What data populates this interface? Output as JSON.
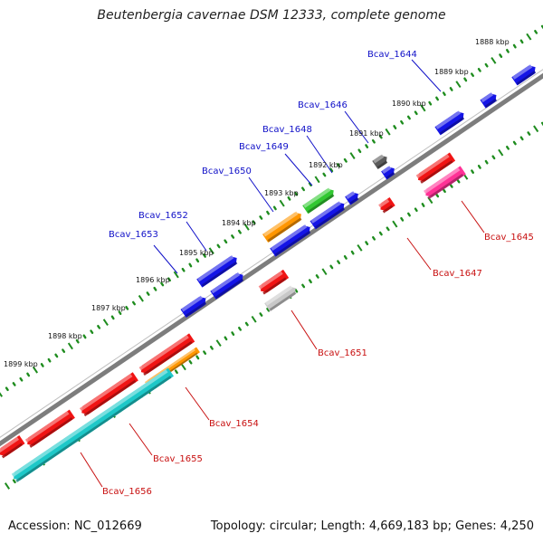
{
  "header": {
    "title": "Beutenbergia cavernae DSM 12333, complete genome"
  },
  "footer": {
    "accession": "Accession: NC_012669",
    "info": "Topology: circular; Length: 4,669,183 bp; Genes: 4,250"
  },
  "colors": {
    "backbone": "#7d7d7d",
    "tick": "#1e8c1e",
    "forward_label": "#1010c8",
    "reverse_label": "#c81010",
    "blue": "#1414e6",
    "red": "#f01414",
    "orange": "#ff9600",
    "green": "#32c832",
    "gray": "#5a5a5a",
    "lightgray": "#c8c8c8",
    "pink": "#ff3296",
    "cyan": "#1ec8c8"
  },
  "scale": {
    "unit": "kbp",
    "labels": [
      "1888 kbp",
      "1889 kbp",
      "1890 kbp",
      "1891 kbp",
      "1892 kbp",
      "1893 kbp",
      "1894 kbp",
      "1895 kbp",
      "1896 kbp",
      "1897 kbp",
      "1898 kbp",
      "1899 kbp"
    ]
  },
  "forward_labels": [
    "Bcav_1644",
    "Bcav_1646",
    "Bcav_1648",
    "Bcav_1649",
    "Bcav_1650",
    "Bcav_1652",
    "Bcav_1653"
  ],
  "reverse_labels": [
    "Bcav_1645",
    "Bcav_1647",
    "Bcav_1651",
    "Bcav_1654",
    "Bcav_1655",
    "Bcav_1656"
  ]
}
